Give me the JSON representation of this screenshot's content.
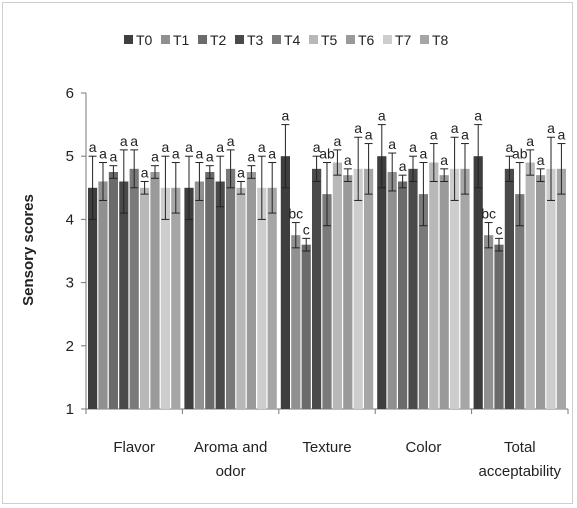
{
  "chart_data": {
    "type": "bar",
    "title": "",
    "xlabel": "",
    "ylabel": "Sensory scores",
    "ylim": [
      1,
      6
    ],
    "yticks": [
      1,
      2,
      3,
      4,
      5,
      6
    ],
    "grid": false,
    "legend_position": "top",
    "categories": [
      [
        "Flavor"
      ],
      [
        "Aroma and",
        "odor"
      ],
      [
        "Texture"
      ],
      [
        "Color"
      ],
      [
        "Total",
        "acceptability"
      ]
    ],
    "series": [
      {
        "name": "T0",
        "color": "#3e3e3e",
        "values": [
          4.5,
          4.5,
          5.0,
          5.0,
          5.0
        ],
        "errors": [
          0.5,
          0.5,
          0.5,
          0.5,
          0.5
        ],
        "labels": [
          "a",
          "a",
          "a",
          "a",
          "a"
        ]
      },
      {
        "name": "T1",
        "color": "#909090",
        "values": [
          4.6,
          4.6,
          3.75,
          4.75,
          3.75
        ],
        "errors": [
          0.3,
          0.3,
          0.2,
          0.3,
          0.2
        ],
        "labels": [
          "a",
          "a",
          "bc",
          "a",
          "bc"
        ]
      },
      {
        "name": "T2",
        "color": "#6b6b6b",
        "values": [
          4.75,
          4.75,
          3.6,
          4.6,
          3.6
        ],
        "errors": [
          0.1,
          0.1,
          0.1,
          0.1,
          0.1
        ],
        "labels": [
          "a",
          "a",
          "c",
          "a",
          "c"
        ]
      },
      {
        "name": "T3",
        "color": "#4a4a4a",
        "values": [
          4.6,
          4.6,
          4.8,
          4.8,
          4.8
        ],
        "errors": [
          0.5,
          0.4,
          0.2,
          0.2,
          0.2
        ],
        "labels": [
          "a",
          "a",
          "a",
          "a",
          "a"
        ]
      },
      {
        "name": "T4",
        "color": "#7a7a7a",
        "values": [
          4.8,
          4.8,
          4.4,
          4.4,
          4.4
        ],
        "errors": [
          0.3,
          0.3,
          0.5,
          0.5,
          0.5
        ],
        "labels": [
          "a",
          "a",
          "ab",
          "a",
          "ab"
        ]
      },
      {
        "name": "T5",
        "color": "#b8b8b8",
        "values": [
          4.5,
          4.5,
          4.9,
          4.9,
          4.9
        ],
        "errors": [
          0.1,
          0.1,
          0.2,
          0.3,
          0.2
        ],
        "labels": [
          "a",
          "a",
          "a",
          "a",
          "a"
        ]
      },
      {
        "name": "T6",
        "color": "#9a9a9a",
        "values": [
          4.75,
          4.75,
          4.7,
          4.7,
          4.7
        ],
        "errors": [
          0.1,
          0.1,
          0.1,
          0.1,
          0.1
        ],
        "labels": [
          "a",
          "a",
          "a",
          "a",
          "a"
        ]
      },
      {
        "name": "T7",
        "color": "#cdcdcd",
        "values": [
          4.5,
          4.5,
          4.8,
          4.8,
          4.8
        ],
        "errors": [
          0.5,
          0.5,
          0.5,
          0.5,
          0.5
        ],
        "labels": [
          "a",
          "a",
          "a",
          "a",
          "a"
        ]
      },
      {
        "name": "T8",
        "color": "#a6a6a6",
        "values": [
          4.5,
          4.5,
          4.8,
          4.8,
          4.8
        ],
        "errors": [
          0.4,
          0.4,
          0.4,
          0.4,
          0.4
        ],
        "labels": [
          "a",
          "a",
          "a",
          "a",
          "a"
        ]
      }
    ]
  }
}
